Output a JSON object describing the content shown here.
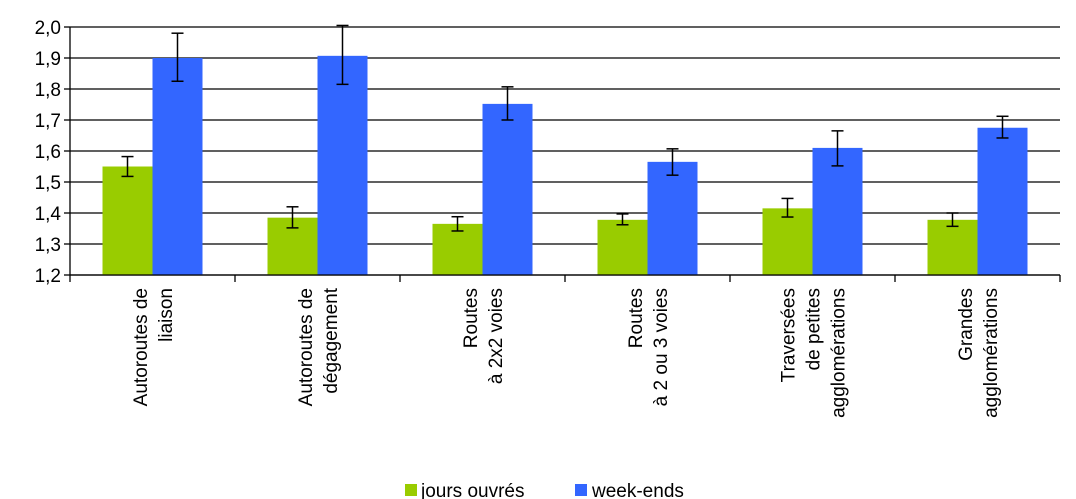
{
  "chart_data": {
    "type": "bar",
    "categories": [
      [
        "Autoroutes de",
        "liaison"
      ],
      [
        "Autoroutes de",
        "dégagement"
      ],
      [
        "Routes",
        "à 2x2 voies"
      ],
      [
        "Routes",
        "à 2 ou 3 voies"
      ],
      [
        "Traversées",
        "de petites",
        "agglomérations"
      ],
      [
        "Grandes",
        "agglomérations"
      ]
    ],
    "series": [
      {
        "name": "jours ouvrés",
        "color": "#99cc00",
        "values": [
          1.55,
          1.385,
          1.365,
          1.378,
          1.415,
          1.378
        ],
        "error_low": [
          1.518,
          1.352,
          1.342,
          1.362,
          1.387,
          1.357
        ],
        "error_high": [
          1.582,
          1.42,
          1.388,
          1.397,
          1.447,
          1.4
        ]
      },
      {
        "name": "week-ends",
        "color": "#3366ff",
        "values": [
          1.9,
          1.907,
          1.752,
          1.565,
          1.61,
          1.675
        ],
        "error_low": [
          1.825,
          1.815,
          1.7,
          1.522,
          1.552,
          1.642
        ],
        "error_high": [
          1.98,
          2.005,
          1.807,
          1.607,
          1.665,
          1.712
        ]
      }
    ],
    "ylim": [
      1.2,
      2.0
    ],
    "yticks": [
      "1,2",
      "1,3",
      "1,4",
      "1,5",
      "1,6",
      "1,7",
      "1,8",
      "1,9",
      "2,0"
    ],
    "grid": true,
    "legend": "bottom"
  }
}
